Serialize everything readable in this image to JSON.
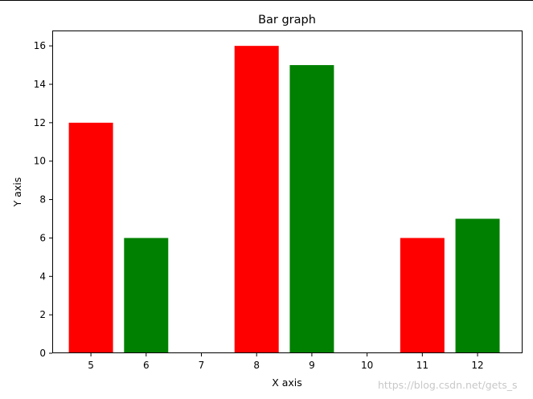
{
  "chart_data": {
    "type": "bar",
    "title": "Bar graph",
    "xlabel": "X axis",
    "ylabel": "Y axis",
    "xlim": [
      4.3,
      12.8
    ],
    "ylim": [
      0,
      16.8
    ],
    "xticks": [
      5,
      6,
      7,
      8,
      9,
      10,
      11,
      12
    ],
    "yticks": [
      0,
      2,
      4,
      6,
      8,
      10,
      12,
      14,
      16
    ],
    "grid": false,
    "series": [
      {
        "color": "#ff0000",
        "x": [
          5,
          8,
          11
        ],
        "values": [
          12,
          16,
          6
        ]
      },
      {
        "color": "#008000",
        "x": [
          6,
          9,
          12
        ],
        "values": [
          6,
          15,
          7
        ]
      }
    ]
  },
  "watermark": "https://blog.csdn.net/gets_s"
}
